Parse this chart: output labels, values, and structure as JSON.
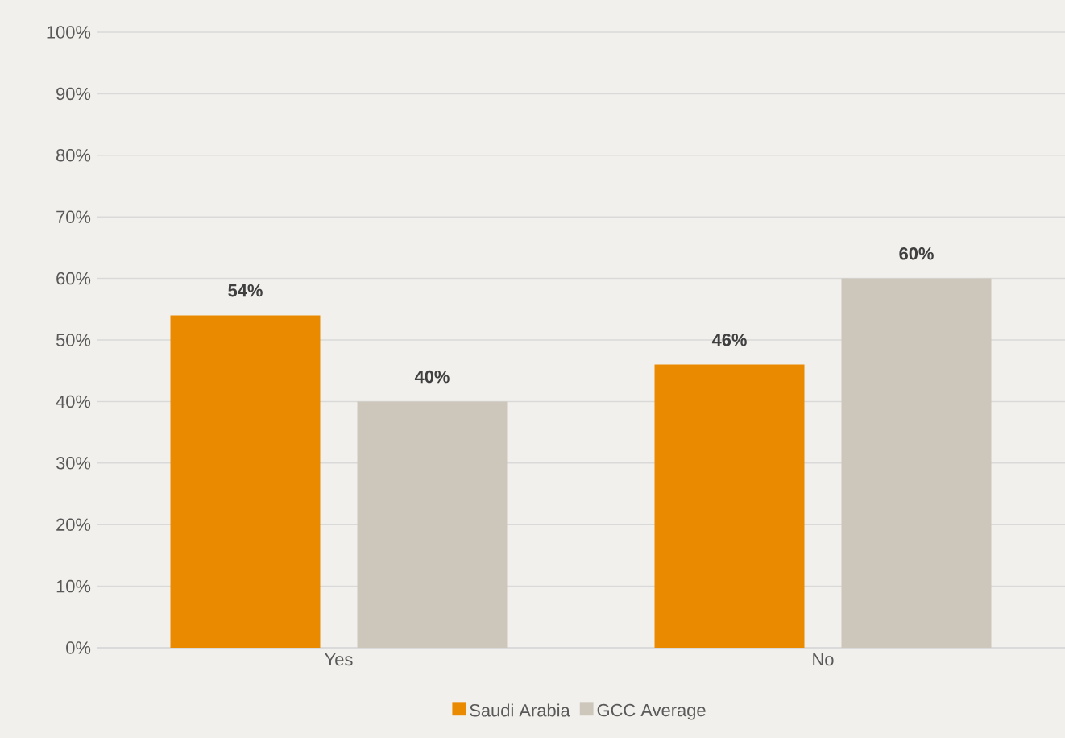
{
  "chart_data": {
    "type": "bar",
    "categories": [
      "Yes",
      "No"
    ],
    "series": [
      {
        "name": "Saudi Arabia",
        "color": "#ea8a00",
        "values": [
          54,
          46
        ],
        "value_labels": [
          "54%",
          "46%"
        ]
      },
      {
        "name": "GCC Average",
        "color": "#cdc6bb",
        "values": [
          40,
          60
        ],
        "value_labels": [
          "40%",
          "60%"
        ]
      }
    ],
    "ylim": [
      0,
      100
    ],
    "yticks": [
      {
        "value": 0,
        "label": "0%"
      },
      {
        "value": 10,
        "label": "10%"
      },
      {
        "value": 20,
        "label": "20%"
      },
      {
        "value": 30,
        "label": "30%"
      },
      {
        "value": 40,
        "label": "40%"
      },
      {
        "value": 50,
        "label": "50%"
      },
      {
        "value": 60,
        "label": "60%"
      },
      {
        "value": 70,
        "label": "70%"
      },
      {
        "value": 80,
        "label": "80%"
      },
      {
        "value": 90,
        "label": "90%"
      },
      {
        "value": 100,
        "label": "100%"
      }
    ],
    "grid": "y",
    "legend": "bottom"
  }
}
